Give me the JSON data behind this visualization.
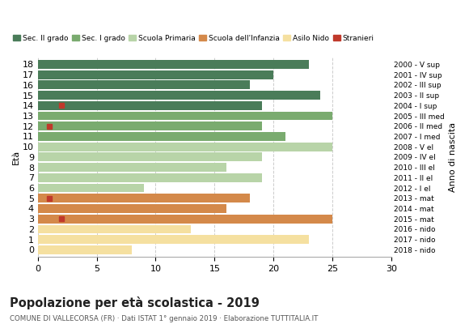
{
  "ages": [
    18,
    17,
    16,
    15,
    14,
    13,
    12,
    11,
    10,
    9,
    8,
    7,
    6,
    5,
    4,
    3,
    2,
    1,
    0
  ],
  "values": [
    23,
    20,
    18,
    24,
    19,
    25,
    19,
    21,
    25,
    19,
    16,
    19,
    9,
    18,
    16,
    25,
    13,
    23,
    8
  ],
  "colors": [
    "#4a7c59",
    "#4a7c59",
    "#4a7c59",
    "#4a7c59",
    "#4a7c59",
    "#7aab6f",
    "#7aab6f",
    "#7aab6f",
    "#b8d4a8",
    "#b8d4a8",
    "#b8d4a8",
    "#b8d4a8",
    "#b8d4a8",
    "#d4894a",
    "#d4894a",
    "#d4894a",
    "#f5e0a0",
    "#f5e0a0",
    "#f5e0a0"
  ],
  "stranieri_ages": [
    14,
    12,
    5,
    3
  ],
  "stranieri_values": [
    2,
    1,
    1,
    2
  ],
  "anno_nascita": [
    "2000 - V sup",
    "2001 - IV sup",
    "2002 - III sup",
    "2003 - II sup",
    "2004 - I sup",
    "2005 - III med",
    "2006 - II med",
    "2007 - I med",
    "2008 - V el",
    "2009 - IV el",
    "2010 - III el",
    "2011 - II el",
    "2012 - I el",
    "2013 - mat",
    "2014 - mat",
    "2015 - mat",
    "2016 - nido",
    "2017 - nido",
    "2018 - nido"
  ],
  "legend_labels": [
    "Sec. II grado",
    "Sec. I grado",
    "Scuola Primaria",
    "Scuola dell'Infanzia",
    "Asilo Nido",
    "Stranieri"
  ],
  "legend_colors": [
    "#4a7c59",
    "#7aab6f",
    "#b8d4a8",
    "#d4894a",
    "#f5e0a0",
    "#c0392b"
  ],
  "stranieri_color": "#c0392b",
  "title": "Popolazione per età scolastica - 2019",
  "subtitle": "COMUNE DI VALLECORSA (FR) · Dati ISTAT 1° gennaio 2019 · Elaborazione TUTTITALIA.IT",
  "ylabel_left": "Età",
  "ylabel_right": "Anno di nascita",
  "xlim": [
    0,
    30
  ],
  "xticks": [
    0,
    5,
    10,
    15,
    20,
    25,
    30
  ],
  "bg_color": "#ffffff",
  "grid_color": "#cccccc"
}
